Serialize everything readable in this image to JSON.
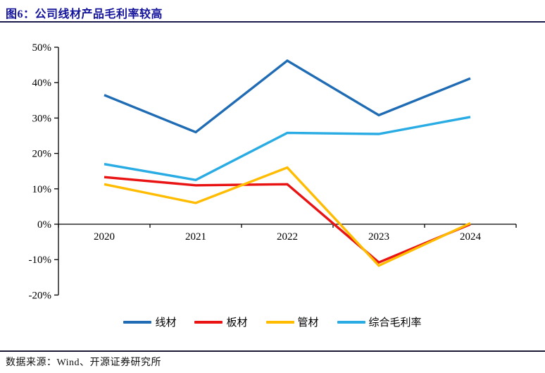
{
  "header": {
    "title": "图6：公司线材产品毛利率较高",
    "divider_color": "#1A1A4D",
    "title_color": "#12129A"
  },
  "footer": {
    "source": "数据来源：Wind、开源证券研究所"
  },
  "chart_data": {
    "type": "line",
    "title": "公司线材产品毛利率较高",
    "categories": [
      "2020",
      "2021",
      "2022",
      "2023",
      "2024"
    ],
    "series": [
      {
        "name": "线材",
        "color": "#1F6CB4",
        "values": [
          36.5,
          26.0,
          46.2,
          30.8,
          41.2
        ]
      },
      {
        "name": "板材",
        "color": "#E91313",
        "values": [
          13.3,
          11.0,
          11.3,
          -10.8,
          0.0
        ]
      },
      {
        "name": "管材",
        "color": "#FFBC00",
        "values": [
          11.3,
          6.0,
          16.0,
          -11.7,
          0.3
        ]
      },
      {
        "name": "综合毛利率",
        "color": "#29ABE3",
        "values": [
          17.0,
          12.5,
          25.8,
          25.5,
          30.3
        ]
      }
    ],
    "ylim": [
      -20,
      50
    ],
    "ytick_step": 10,
    "ytick_labels": [
      "50%",
      "40%",
      "30%",
      "20%",
      "10%",
      "0%",
      "-10%",
      "-20%"
    ],
    "grid": false,
    "legend_position": "bottom",
    "axis_color": "#000000"
  }
}
